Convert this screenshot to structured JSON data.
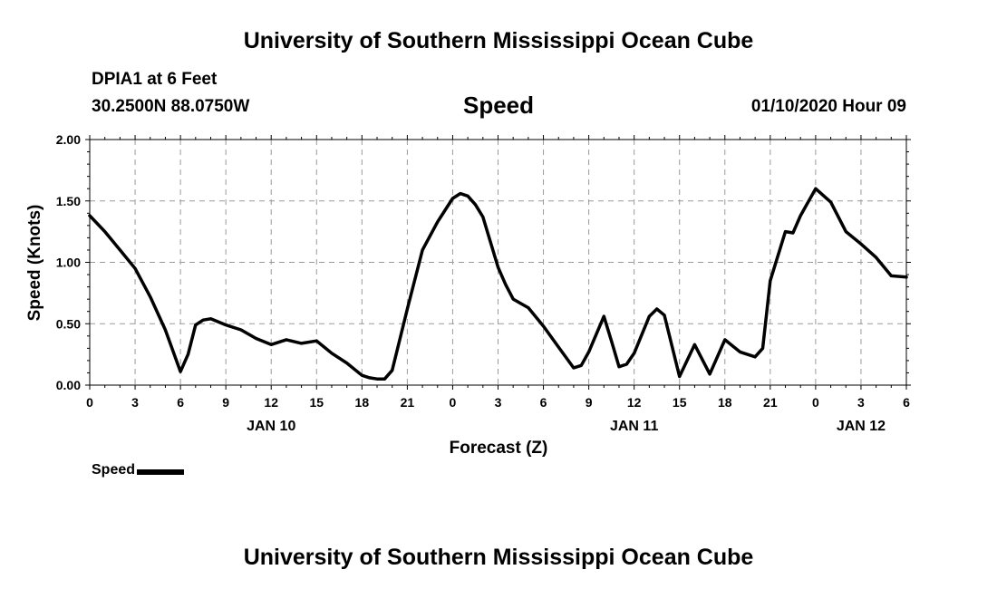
{
  "header": {
    "title": "University of Southern Mississippi Ocean Cube",
    "station": "DPIA1 at 6 Feet",
    "coords": "30.2500N 88.0750W",
    "datetime": "01/10/2020 Hour 09"
  },
  "footer": {
    "title": "University of Southern Mississippi Ocean Cube"
  },
  "legend": {
    "label": "Speed",
    "color": "#000000"
  },
  "chart_data": {
    "type": "line",
    "title": "Speed",
    "xlabel": "Forecast (Z)",
    "ylabel": "Speed (Knots)",
    "xlim": [
      0,
      54
    ],
    "ylim": [
      0,
      2
    ],
    "x_ticks": [
      0,
      3,
      6,
      9,
      12,
      15,
      18,
      21,
      24,
      27,
      30,
      33,
      36,
      39,
      42,
      45,
      48,
      51,
      54
    ],
    "x_tick_labels": [
      "0",
      "3",
      "6",
      "9",
      "12",
      "15",
      "18",
      "21",
      "0",
      "3",
      "6",
      "9",
      "12",
      "15",
      "18",
      "21",
      "0",
      "3",
      "6"
    ],
    "y_ticks": [
      0,
      0.5,
      1,
      1.5,
      2
    ],
    "y_tick_labels": [
      "0.00",
      "0.50",
      "1.00",
      "1.50",
      "2.00"
    ],
    "day_labels": [
      {
        "x": 12,
        "label": "JAN 10"
      },
      {
        "x": 36,
        "label": "JAN 11"
      },
      {
        "x": 51,
        "label": "JAN 12"
      }
    ],
    "grid": true,
    "series": [
      {
        "name": "Speed",
        "x": [
          0,
          1,
          2,
          3,
          4,
          5,
          6,
          6.5,
          7,
          7.5,
          8,
          9,
          10,
          11,
          12,
          13,
          14,
          15,
          16,
          17,
          18,
          18.5,
          19,
          19.5,
          20,
          21,
          22,
          23,
          24,
          24.5,
          25,
          25.5,
          26,
          27,
          27.5,
          28,
          29,
          30,
          31,
          32,
          32.5,
          33,
          34,
          34.5,
          35,
          35.5,
          36,
          37,
          37.5,
          38,
          39,
          40,
          41,
          42,
          42.5,
          43,
          44,
          44.5,
          45,
          46,
          46.5,
          47,
          48,
          49,
          50,
          51,
          52,
          53,
          54
        ],
        "values": [
          1.38,
          1.25,
          1.1,
          0.95,
          0.72,
          0.45,
          0.11,
          0.25,
          0.49,
          0.53,
          0.54,
          0.49,
          0.45,
          0.38,
          0.33,
          0.37,
          0.34,
          0.36,
          0.26,
          0.18,
          0.08,
          0.06,
          0.05,
          0.05,
          0.12,
          0.62,
          1.1,
          1.33,
          1.52,
          1.56,
          1.54,
          1.47,
          1.37,
          0.96,
          0.82,
          0.7,
          0.63,
          0.48,
          0.31,
          0.14,
          0.16,
          0.27,
          0.56,
          0.36,
          0.15,
          0.17,
          0.26,
          0.56,
          0.62,
          0.57,
          0.07,
          0.33,
          0.09,
          0.37,
          0.32,
          0.27,
          0.23,
          0.3,
          0.85,
          1.25,
          1.24,
          1.38,
          1.6,
          1.49,
          1.25,
          1.15,
          1.04,
          0.89,
          0.88
        ]
      }
    ]
  }
}
